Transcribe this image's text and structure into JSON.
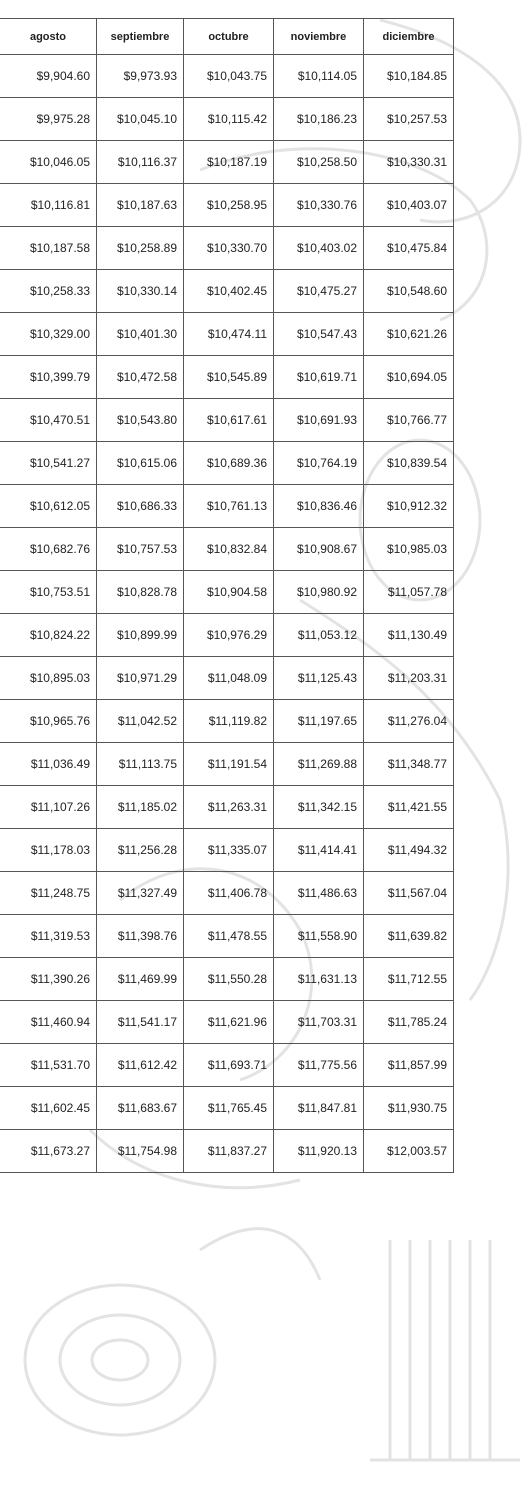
{
  "table": {
    "header": [
      "agosto",
      "septiembre",
      "octubre",
      "noviembre",
      "diciembre"
    ],
    "rows": [
      [
        "$9,904.60",
        "$9,973.93",
        "$10,043.75",
        "$10,114.05",
        "$10,184.85"
      ],
      [
        "$9,975.28",
        "$10,045.10",
        "$10,115.42",
        "$10,186.23",
        "$10,257.53"
      ],
      [
        "$10,046.05",
        "$10,116.37",
        "$10,187.19",
        "$10,258.50",
        "$10,330.31"
      ],
      [
        "$10,116.81",
        "$10,187.63",
        "$10,258.95",
        "$10,330.76",
        "$10,403.07"
      ],
      [
        "$10,187.58",
        "$10,258.89",
        "$10,330.70",
        "$10,403.02",
        "$10,475.84"
      ],
      [
        "$10,258.33",
        "$10,330.14",
        "$10,402.45",
        "$10,475.27",
        "$10,548.60"
      ],
      [
        "$10,329.00",
        "$10,401.30",
        "$10,474.11",
        "$10,547.43",
        "$10,621.26"
      ],
      [
        "$10,399.79",
        "$10,472.58",
        "$10,545.89",
        "$10,619.71",
        "$10,694.05"
      ],
      [
        "$10,470.51",
        "$10,543.80",
        "$10,617.61",
        "$10,691.93",
        "$10,766.77"
      ],
      [
        "$10,541.27",
        "$10,615.06",
        "$10,689.36",
        "$10,764.19",
        "$10,839.54"
      ],
      [
        "$10,612.05",
        "$10,686.33",
        "$10,761.13",
        "$10,836.46",
        "$10,912.32"
      ],
      [
        "$10,682.76",
        "$10,757.53",
        "$10,832.84",
        "$10,908.67",
        "$10,985.03"
      ],
      [
        "$10,753.51",
        "$10,828.78",
        "$10,904.58",
        "$10,980.92",
        "$11,057.78"
      ],
      [
        "$10,824.22",
        "$10,899.99",
        "$10,976.29",
        "$11,053.12",
        "$11,130.49"
      ],
      [
        "$10,895.03",
        "$10,971.29",
        "$11,048.09",
        "$11,125.43",
        "$11,203.31"
      ],
      [
        "$10,965.76",
        "$11,042.52",
        "$11,119.82",
        "$11,197.65",
        "$11,276.04"
      ],
      [
        "$11,036.49",
        "$11,113.75",
        "$11,191.54",
        "$11,269.88",
        "$11,348.77"
      ],
      [
        "$11,107.26",
        "$11,185.02",
        "$11,263.31",
        "$11,342.15",
        "$11,421.55"
      ],
      [
        "$11,178.03",
        "$11,256.28",
        "$11,335.07",
        "$11,414.41",
        "$11,494.32"
      ],
      [
        "$11,248.75",
        "$11,327.49",
        "$11,406.78",
        "$11,486.63",
        "$11,567.04"
      ],
      [
        "$11,319.53",
        "$11,398.76",
        "$11,478.55",
        "$11,558.90",
        "$11,639.82"
      ],
      [
        "$11,390.26",
        "$11,469.99",
        "$11,550.28",
        "$11,631.13",
        "$11,712.55"
      ],
      [
        "$11,460.94",
        "$11,541.17",
        "$11,621.96",
        "$11,703.31",
        "$11,785.24"
      ],
      [
        "$11,531.70",
        "$11,612.42",
        "$11,693.71",
        "$11,775.56",
        "$11,857.99"
      ],
      [
        "$11,602.45",
        "$11,683.67",
        "$11,765.45",
        "$11,847.81",
        "$11,930.75"
      ],
      [
        "$11,673.27",
        "$11,754.98",
        "$11,837.27",
        "$11,920.13",
        "$12,003.57"
      ]
    ]
  }
}
